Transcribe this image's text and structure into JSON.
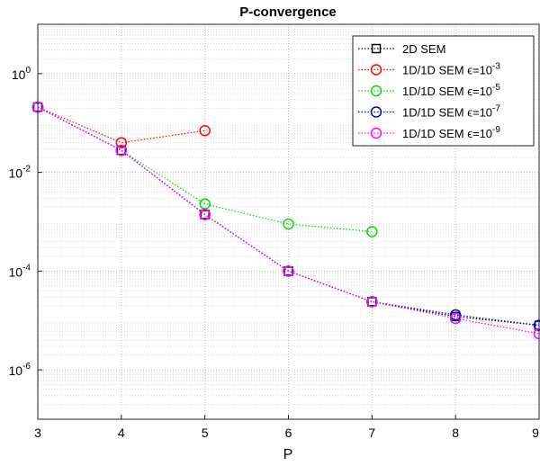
{
  "chart_data": {
    "type": "line",
    "title": "P-convergence",
    "x_label": "P",
    "x": [
      3,
      4,
      5,
      6,
      7,
      8,
      9
    ],
    "xlim": [
      3,
      9
    ],
    "xticks": [
      3,
      4,
      5,
      6,
      7,
      8,
      9
    ],
    "ylim": [
      1e-07,
      10
    ],
    "log_y": true,
    "grid": true,
    "minor_grid": true,
    "legend": "top-right",
    "yticks": [
      {
        "value": 1e-06,
        "label": "10",
        "sup": "-6"
      },
      {
        "value": 0.0001,
        "label": "10",
        "sup": "-4"
      },
      {
        "value": 0.01,
        "label": "10",
        "sup": "-2"
      },
      {
        "value": 1,
        "label": "10",
        "sup": "0"
      }
    ],
    "series": [
      {
        "name": "2D SEM",
        "color": "#000000",
        "marker": "square",
        "values": [
          0.21,
          0.028,
          0.0014,
          0.0001,
          2.4e-05,
          1.2e-05,
          8e-06
        ]
      },
      {
        "name": "1D/1D SEM ϵ=10",
        "name_sup": "-3",
        "color": "#ff0000",
        "marker": "circle",
        "values": [
          0.21,
          0.04,
          0.07,
          null,
          null,
          null,
          null
        ]
      },
      {
        "name": "1D/1D SEM ϵ=10",
        "name_sup": "-5",
        "color": "#00dd00",
        "marker": "circle",
        "values": [
          0.21,
          0.028,
          0.0023,
          0.0009,
          0.00063,
          null,
          null
        ]
      },
      {
        "name": "1D/1D SEM ϵ=10",
        "name_sup": "-7",
        "color": "#0000cc",
        "marker": "circle",
        "values": [
          0.21,
          0.028,
          0.0014,
          0.0001,
          2.4e-05,
          1.3e-05,
          8e-06
        ]
      },
      {
        "name": "1D/1D SEM ϵ=10",
        "name_sup": "-9",
        "color": "#ff00ff",
        "marker": "circle",
        "values": [
          0.21,
          0.028,
          0.0014,
          0.0001,
          2.4e-05,
          1.1e-05,
          5.4e-06
        ]
      }
    ]
  }
}
